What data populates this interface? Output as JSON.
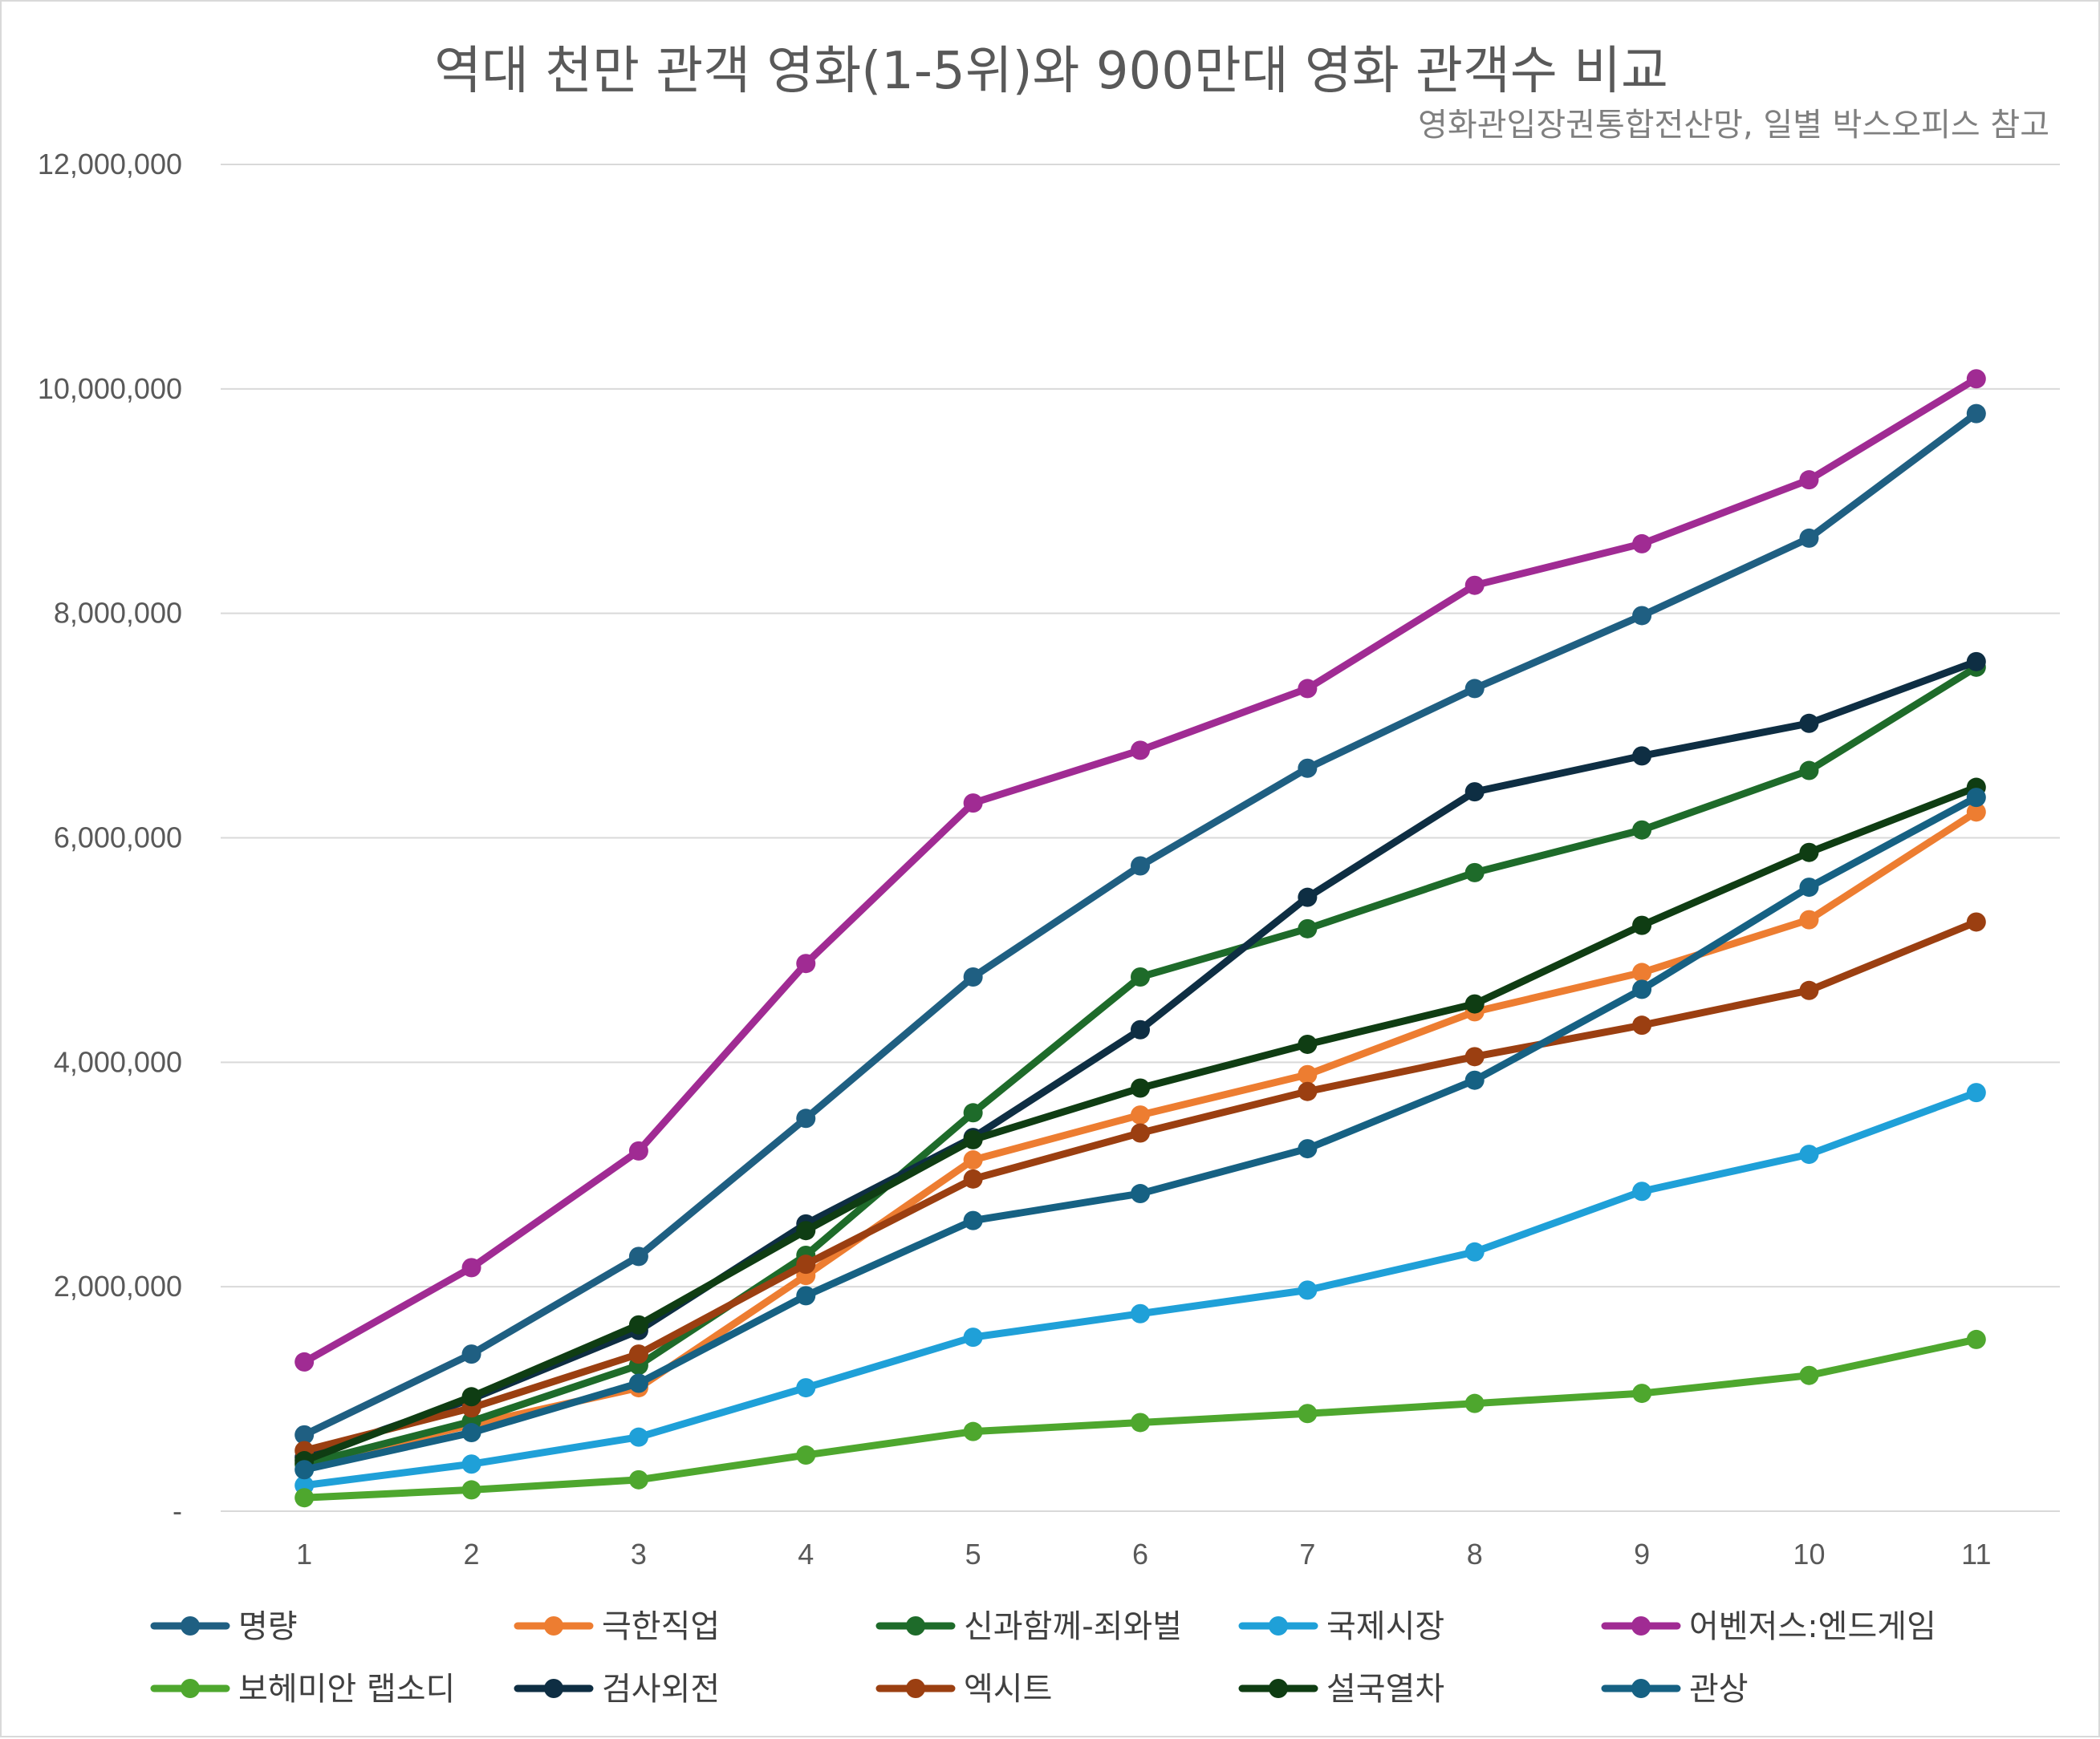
{
  "chart_data": {
    "type": "line",
    "title": "역대 천만 관객 영화(1-5위)와 900만대 영화 관객수 비교",
    "subtitle": "영화관입장권통합전산망, 일별 박스오피스 참고",
    "xlabel": "",
    "ylabel": "",
    "x": [
      1,
      2,
      3,
      4,
      5,
      6,
      7,
      8,
      9,
      10,
      11
    ],
    "ylim": [
      0,
      12000000
    ],
    "yticks": [
      0,
      2000000,
      4000000,
      6000000,
      8000000,
      10000000,
      12000000
    ],
    "ytick_labels": [
      "-",
      "2,000,000",
      "4,000,000",
      "6,000,000",
      "8,000,000",
      "10,000,000",
      "12,000,000"
    ],
    "grid": true,
    "legend_position": "bottom",
    "series": [
      {
        "name": "명량",
        "color": "#1f5f82",
        "values": [
          680000,
          1400000,
          2270000,
          3500000,
          4760000,
          5750000,
          6620000,
          7330000,
          7980000,
          8670000,
          9780000
        ]
      },
      {
        "name": "극한직업",
        "color": "#ed7d31",
        "values": [
          420000,
          770000,
          1100000,
          2100000,
          3130000,
          3530000,
          3890000,
          4450000,
          4800000,
          5270000,
          6230000
        ]
      },
      {
        "name": "신과함께-죄와벌",
        "color": "#1e6b2a",
        "values": [
          420000,
          800000,
          1300000,
          2280000,
          3550000,
          4760000,
          5190000,
          5690000,
          6070000,
          6600000,
          7520000
        ]
      },
      {
        "name": "국제시장",
        "color": "#1fa0d8",
        "values": [
          230000,
          420000,
          660000,
          1100000,
          1550000,
          1760000,
          1970000,
          2310000,
          2850000,
          3180000,
          3730000
        ]
      },
      {
        "name": "어벤저스:엔드게임",
        "color": "#a02b93",
        "values": [
          1330000,
          2170000,
          3210000,
          4880000,
          6310000,
          6780000,
          7330000,
          8250000,
          8620000,
          9190000,
          10090000
        ]
      },
      {
        "name": "보헤미안 랩소디",
        "color": "#4ea72e",
        "values": [
          120000,
          190000,
          280000,
          500000,
          710000,
          790000,
          870000,
          960000,
          1050000,
          1210000,
          1530000
        ]
      },
      {
        "name": "검사외전",
        "color": "#0e2e43",
        "values": [
          480000,
          1000000,
          1610000,
          2560000,
          3330000,
          4290000,
          5470000,
          6410000,
          6730000,
          7020000,
          7570000
        ]
      },
      {
        "name": "엑시트",
        "color": "#9b3f11",
        "values": [
          540000,
          920000,
          1400000,
          2200000,
          2960000,
          3370000,
          3740000,
          4050000,
          4330000,
          4640000,
          5250000
        ]
      },
      {
        "name": "설국열차",
        "color": "#0f3d13",
        "values": [
          450000,
          1020000,
          1660000,
          2500000,
          3310000,
          3770000,
          4160000,
          4520000,
          5220000,
          5870000,
          6450000
        ]
      },
      {
        "name": "관상",
        "color": "#166183",
        "values": [
          370000,
          700000,
          1140000,
          1920000,
          2590000,
          2830000,
          3230000,
          3840000,
          4650000,
          5560000,
          6360000
        ]
      }
    ]
  }
}
